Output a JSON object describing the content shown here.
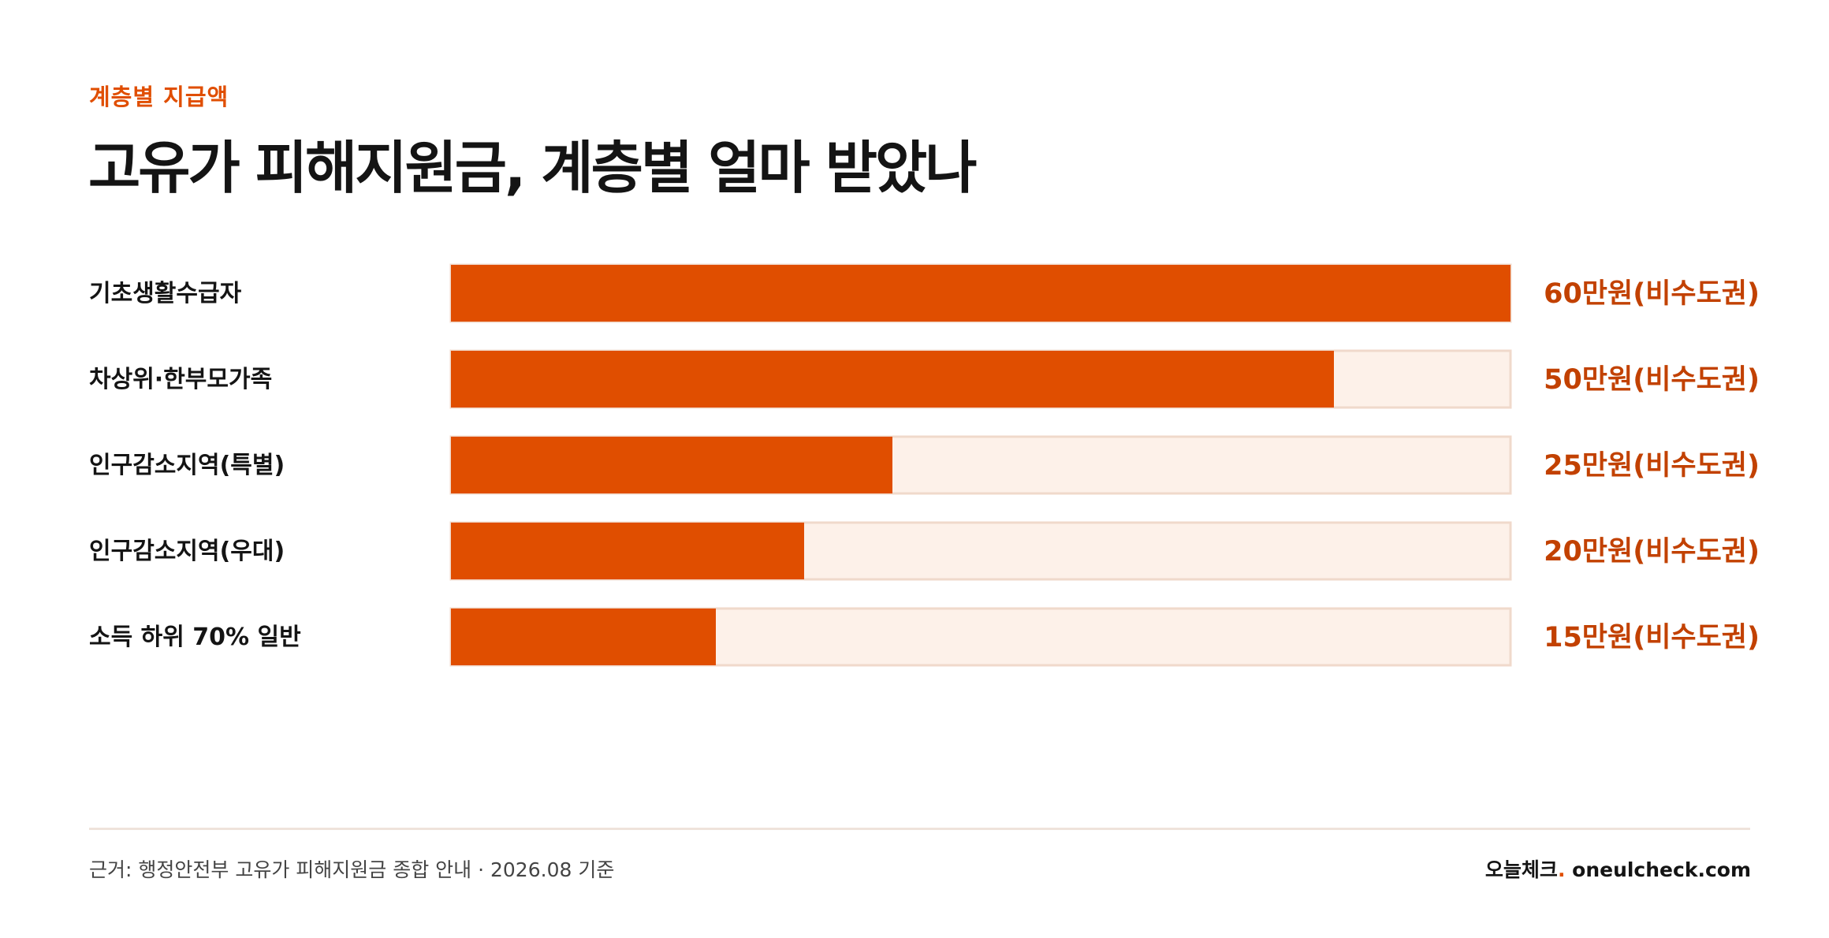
{
  "header": {
    "eyebrow": "계층별 지급액",
    "title": "고유가 피해지원금, 계층별 얼마 받았나"
  },
  "colors": {
    "accent": "#e04e00",
    "track": "#fdf1e9",
    "track_border": "#f0d9cb",
    "value_text": "#c24100",
    "label_text": "#141414"
  },
  "chart_data": {
    "type": "bar",
    "orientation": "horizontal",
    "categories": [
      "기초생활수급자",
      "차상위·한부모가족",
      "인구감소지역(특별)",
      "인구감소지역(우대)",
      "소득 하위 70% 일반"
    ],
    "values": [
      60,
      50,
      25,
      20,
      15
    ],
    "value_labels": [
      "60만원(비수도권)",
      "50만원(비수도권)",
      "25만원(비수도권)",
      "20만원(비수도권)",
      "15만원(비수도권)"
    ],
    "xlim": [
      0,
      60
    ],
    "grid": false,
    "legend": "none"
  },
  "footer": {
    "source": "근거: 행정안전부 고유가 피해지원금 종합 안내 · 2026.08 기준",
    "brand_name": "오늘체크",
    "brand_dot": ".",
    "brand_domain": " oneulcheck.com"
  }
}
